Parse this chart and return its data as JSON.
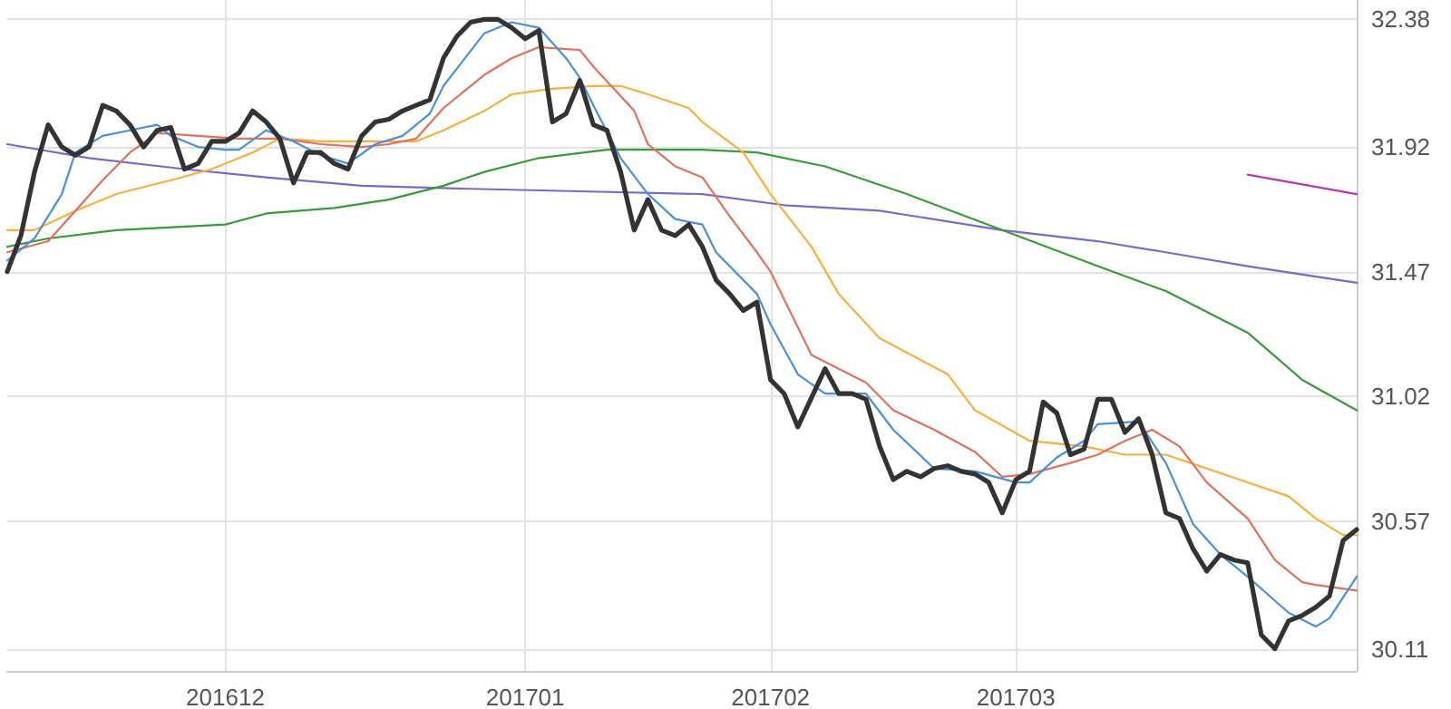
{
  "chart_data": {
    "type": "line",
    "marker": "none",
    "grid": true,
    "categories": [
      null,
      null,
      null,
      null,
      null,
      null,
      null,
      null,
      null,
      null,
      null,
      null,
      null,
      null,
      null,
      null,
      "201612",
      null,
      null,
      null,
      null,
      null,
      null,
      null,
      null,
      null,
      null,
      null,
      null,
      null,
      null,
      null,
      null,
      null,
      null,
      null,
      null,
      null,
      "201701",
      null,
      null,
      null,
      null,
      null,
      null,
      null,
      null,
      null,
      null,
      null,
      null,
      null,
      null,
      null,
      null,
      null,
      "201702",
      null,
      null,
      null,
      null,
      null,
      null,
      null,
      null,
      null,
      null,
      null,
      null,
      null,
      null,
      null,
      null,
      null,
      "201703",
      null,
      null,
      null,
      null,
      null,
      null,
      null,
      null,
      null,
      null,
      null,
      null,
      null,
      null,
      null,
      null,
      null,
      null,
      null,
      null,
      null,
      null,
      null,
      null,
      null
    ],
    "ylim": [
      30.03,
      32.45
    ],
    "yticks": [
      30.11,
      30.57,
      31.02,
      31.47,
      31.92,
      32.38
    ],
    "series": [
      {
        "color": "#7b68c8",
        "values": [
          31.93,
          null,
          null,
          null,
          null,
          null,
          31.88,
          null,
          null,
          null,
          null,
          null,
          null,
          31.84,
          null,
          null,
          null,
          null,
          null,
          31.81,
          null,
          null,
          null,
          null,
          null,
          null,
          31.78,
          null,
          null,
          null,
          null,
          null,
          null,
          31.77,
          null,
          null,
          null,
          null,
          null,
          null,
          null,
          null,
          31.76,
          null,
          null,
          null,
          null,
          null,
          null,
          null,
          null,
          31.75,
          null,
          null,
          null,
          null,
          null,
          31.71,
          null,
          null,
          null,
          null,
          null,
          null,
          31.69,
          null,
          null,
          null,
          null,
          null,
          null,
          null,
          null,
          31.62,
          null,
          null,
          null,
          null,
          null,
          null,
          31.58,
          null,
          null,
          null,
          null,
          31.54,
          null,
          null,
          null,
          null,
          null,
          31.49,
          null,
          null,
          null,
          null,
          null,
          null,
          null,
          31.43
        ]
      },
      {
        "color": "#b03ab0",
        "values": [
          null,
          null,
          null,
          null,
          null,
          null,
          null,
          null,
          null,
          null,
          null,
          null,
          null,
          null,
          null,
          null,
          null,
          null,
          null,
          null,
          null,
          null,
          null,
          null,
          null,
          null,
          null,
          null,
          null,
          null,
          null,
          null,
          null,
          null,
          null,
          null,
          null,
          null,
          null,
          null,
          null,
          null,
          null,
          null,
          null,
          null,
          null,
          null,
          null,
          null,
          null,
          null,
          null,
          null,
          null,
          null,
          null,
          null,
          null,
          null,
          null,
          null,
          null,
          null,
          null,
          null,
          null,
          null,
          null,
          null,
          null,
          null,
          null,
          null,
          null,
          null,
          null,
          null,
          null,
          null,
          null,
          null,
          null,
          null,
          null,
          null,
          null,
          null,
          null,
          null,
          null,
          31.82,
          null,
          null,
          null,
          null,
          null,
          null,
          null,
          31.75
        ]
      },
      {
        "color": "#3a9a3a",
        "values": [
          31.56,
          null,
          null,
          31.59,
          null,
          null,
          null,
          null,
          31.62,
          null,
          null,
          null,
          null,
          null,
          null,
          null,
          31.64,
          null,
          null,
          31.68,
          null,
          null,
          null,
          null,
          31.7,
          null,
          null,
          null,
          31.73,
          null,
          null,
          null,
          31.78,
          null,
          null,
          31.83,
          null,
          null,
          null,
          31.88,
          null,
          null,
          null,
          null,
          31.91,
          null,
          null,
          null,
          null,
          null,
          null,
          31.91,
          null,
          null,
          null,
          31.9,
          null,
          null,
          null,
          null,
          31.85,
          null,
          null,
          null,
          null,
          null,
          31.75,
          null,
          null,
          null,
          null,
          null,
          null,
          31.62,
          null,
          null,
          null,
          null,
          null,
          null,
          31.49,
          null,
          null,
          null,
          null,
          31.4,
          null,
          null,
          null,
          null,
          null,
          31.25,
          null,
          null,
          null,
          31.08,
          null,
          null,
          null,
          30.97
        ]
      },
      {
        "color": "#f5b041",
        "values": [
          31.62,
          null,
          31.62,
          null,
          null,
          31.69,
          null,
          null,
          31.75,
          null,
          null,
          null,
          31.8,
          null,
          null,
          31.84,
          null,
          null,
          31.9,
          null,
          31.95,
          null,
          null,
          31.94,
          null,
          null,
          31.94,
          null,
          null,
          null,
          31.94,
          null,
          31.98,
          null,
          null,
          32.05,
          null,
          32.11,
          null,
          null,
          32.13,
          null,
          null,
          32.14,
          null,
          32.14,
          null,
          32.11,
          null,
          null,
          32.06,
          32.01,
          null,
          null,
          31.9,
          null,
          31.75,
          null,
          null,
          31.56,
          null,
          31.39,
          null,
          null,
          31.23,
          null,
          null,
          null,
          null,
          31.1,
          null,
          30.97,
          null,
          null,
          null,
          30.86,
          null,
          null,
          null,
          30.84,
          null,
          null,
          30.81,
          null,
          null,
          30.81,
          null,
          null,
          30.76,
          null,
          null,
          30.71,
          null,
          null,
          30.66,
          null,
          30.58,
          null,
          30.52,
          30.52
        ]
      },
      {
        "color": "#e0725c",
        "values": [
          31.54,
          null,
          null,
          31.58,
          null,
          31.69,
          null,
          31.8,
          null,
          31.9,
          null,
          31.97,
          null,
          null,
          31.96,
          null,
          null,
          31.95,
          null,
          null,
          31.95,
          null,
          null,
          31.93,
          null,
          null,
          31.92,
          null,
          31.93,
          null,
          31.95,
          null,
          32.06,
          null,
          null,
          32.18,
          null,
          32.24,
          null,
          32.28,
          null,
          null,
          32.27,
          32.21,
          null,
          null,
          32.05,
          31.93,
          null,
          31.85,
          null,
          31.81,
          null,
          31.67,
          null,
          31.54,
          31.47,
          null,
          null,
          31.17,
          null,
          null,
          null,
          31.07,
          null,
          30.97,
          null,
          null,
          30.9,
          null,
          null,
          30.82,
          null,
          30.73,
          null,
          30.74,
          null,
          null,
          30.78,
          null,
          30.81,
          null,
          30.86,
          null,
          30.9,
          null,
          30.84,
          null,
          30.71,
          null,
          null,
          30.58,
          null,
          30.43,
          null,
          30.35,
          30.34,
          null,
          null,
          30.32
        ]
      },
      {
        "color": "#4a90d9",
        "values": [
          31.51,
          null,
          31.59,
          null,
          31.75,
          31.9,
          null,
          31.96,
          null,
          31.98,
          null,
          32.0,
          31.96,
          null,
          31.92,
          null,
          31.91,
          31.91,
          null,
          31.98,
          null,
          31.94,
          null,
          31.89,
          null,
          31.86,
          null,
          31.93,
          null,
          31.96,
          null,
          32.04,
          32.14,
          null,
          null,
          32.33,
          null,
          32.37,
          null,
          32.35,
          null,
          32.24,
          32.17,
          32.07,
          null,
          31.88,
          null,
          31.75,
          null,
          31.66,
          null,
          31.64,
          31.54,
          null,
          null,
          31.39,
          31.28,
          null,
          31.1,
          null,
          31.03,
          null,
          null,
          31.03,
          null,
          30.9,
          null,
          null,
          30.76,
          null,
          null,
          30.75,
          null,
          null,
          30.71,
          30.71,
          null,
          30.8,
          null,
          30.86,
          30.92,
          null,
          null,
          30.93,
          null,
          30.78,
          null,
          30.56,
          null,
          30.45,
          null,
          30.37,
          null,
          null,
          30.24,
          null,
          30.19,
          30.22,
          null,
          30.37
        ]
      },
      {
        "color": "#333333",
        "values": [
          31.47,
          31.6,
          31.83,
          32.0,
          31.92,
          31.89,
          31.92,
          32.07,
          32.05,
          32.0,
          31.92,
          31.98,
          31.99,
          31.84,
          31.86,
          31.94,
          31.94,
          31.97,
          32.05,
          32.01,
          31.95,
          31.79,
          31.9,
          31.9,
          31.86,
          31.84,
          31.96,
          32.01,
          32.02,
          32.05,
          32.07,
          32.09,
          32.24,
          32.32,
          32.37,
          32.38,
          32.38,
          32.35,
          32.31,
          32.34,
          32.01,
          32.04,
          32.16,
          32.0,
          31.98,
          31.83,
          31.62,
          31.73,
          31.62,
          31.6,
          31.64,
          31.56,
          31.44,
          31.39,
          31.33,
          31.36,
          31.08,
          31.03,
          30.91,
          null,
          31.12,
          31.03,
          31.03,
          31.01,
          30.84,
          30.72,
          30.75,
          30.73,
          30.76,
          30.77,
          30.75,
          30.74,
          30.71,
          30.6,
          30.72,
          30.75,
          31.0,
          30.96,
          30.81,
          30.83,
          31.01,
          31.01,
          30.89,
          30.94,
          30.81,
          30.6,
          30.58,
          30.47,
          30.39,
          30.45,
          30.43,
          30.42,
          30.16,
          30.11,
          30.21,
          30.23,
          30.26,
          30.3,
          30.5,
          30.54
        ]
      }
    ]
  }
}
